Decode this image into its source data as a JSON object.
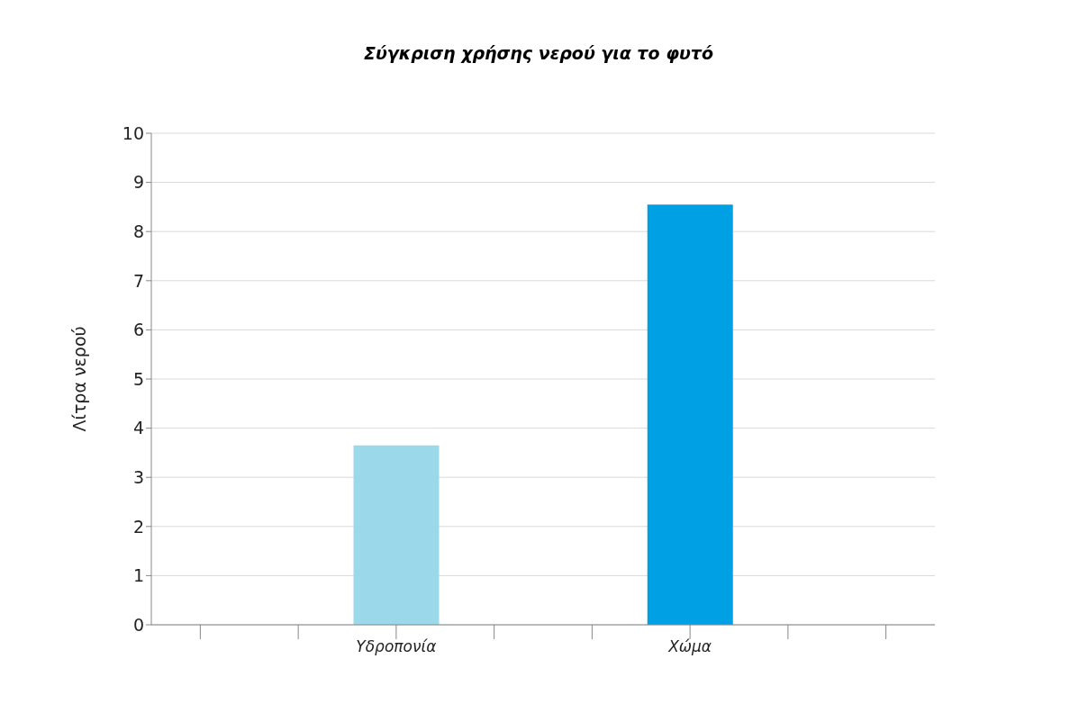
{
  "chart_data": {
    "type": "bar",
    "title": "Σύγκριση χρήσης νερού για το φυτό",
    "ylabel": "Λίτρα νερού",
    "categories": [
      null,
      null,
      "Υδροπονία",
      null,
      null,
      "Χώμα",
      null,
      null
    ],
    "values": [
      null,
      null,
      3.65,
      null,
      null,
      8.55,
      null,
      null
    ],
    "colors": [
      "#9bd8ea",
      "#9bd8ea",
      "#9bd8ea",
      "#9bd8ea",
      "#9bd8ea",
      "#00a1e4",
      "#9bd8ea",
      "#9bd8ea"
    ],
    "ylim": [
      0,
      10
    ],
    "yticks": [
      0,
      1,
      2,
      3,
      4,
      5,
      6,
      7,
      8,
      9,
      10
    ],
    "grid": "y"
  }
}
